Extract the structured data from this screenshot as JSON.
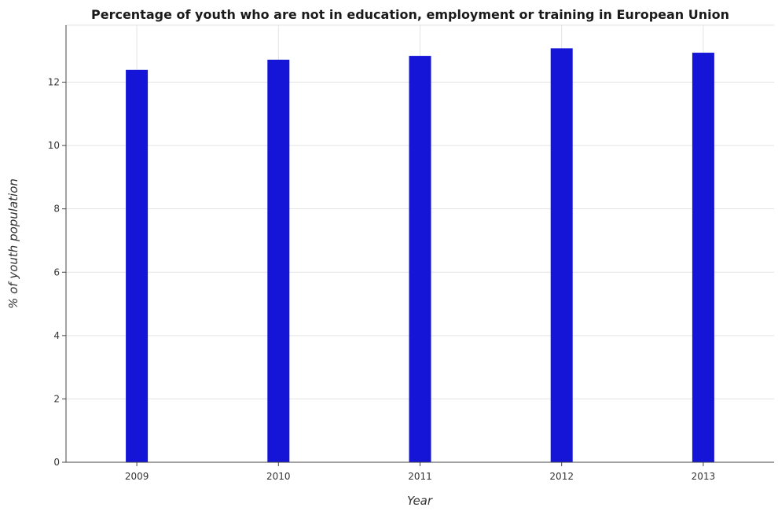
{
  "chart_data": {
    "type": "bar",
    "title": "Percentage of youth who are not in education, employment or training in European Union",
    "xlabel": "Year",
    "ylabel": "% of youth population",
    "categories": [
      "2009",
      "2010",
      "2011",
      "2012",
      "2013"
    ],
    "values": [
      12.39,
      12.71,
      12.83,
      13.07,
      12.93
    ],
    "ylim": [
      0,
      13.8
    ],
    "yticks": [
      0,
      2,
      4,
      6,
      8,
      10,
      12
    ],
    "ytick_labels": [
      "0",
      "2",
      "4",
      "6",
      "8",
      "10",
      "12"
    ],
    "grid": true,
    "bar_color": "#1515d8"
  }
}
